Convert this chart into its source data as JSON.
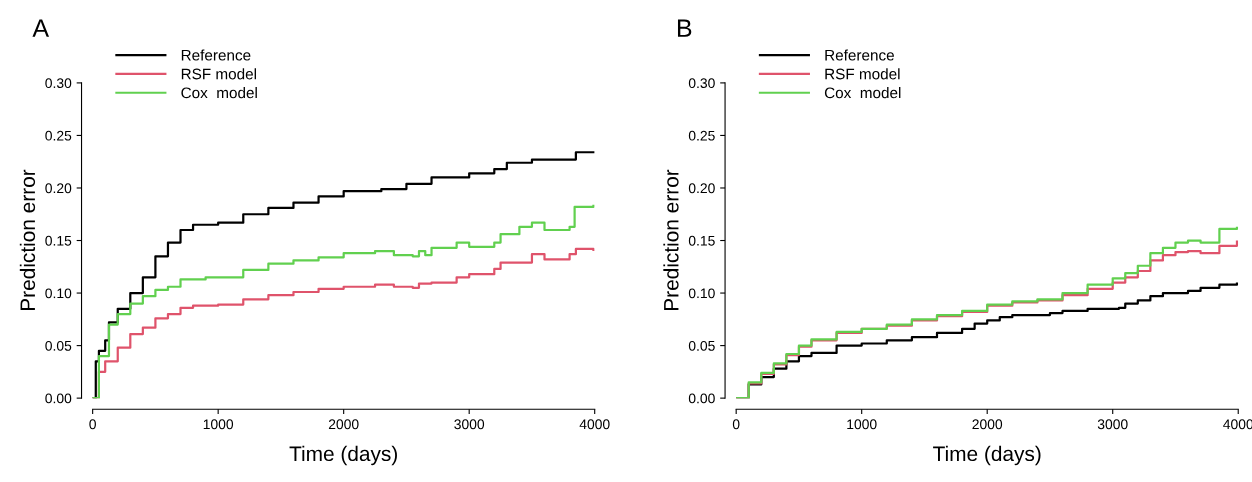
{
  "chart_data": [
    {
      "type": "step",
      "title": "A",
      "xlabel": "Time (days)",
      "ylabel": "Prediction error",
      "xlim": [
        0,
        4000
      ],
      "ylim": [
        0,
        0.3
      ],
      "xticks": [
        0,
        1000,
        2000,
        3000,
        4000
      ],
      "yticks": [
        {
          "value": 0,
          "label": "0.00"
        },
        {
          "value": 0.05,
          "label": "0.05"
        },
        {
          "value": 0.1,
          "label": "0.10"
        },
        {
          "value": 0.15,
          "label": "0.15"
        },
        {
          "value": 0.2,
          "label": "0.20"
        },
        {
          "value": 0.25,
          "label": "0.25"
        },
        {
          "value": 0.3,
          "label": "0.30"
        }
      ],
      "legend": "top left",
      "grid": false,
      "series": [
        {
          "name": "Reference",
          "color": "#000000",
          "x": [
            0,
            25,
            50,
            100,
            130,
            200,
            300,
            400,
            500,
            600,
            700,
            800,
            1000,
            1200,
            1400,
            1600,
            1800,
            2000,
            2300,
            2500,
            2700,
            3000,
            3200,
            3300,
            3500,
            3850,
            3990
          ],
          "values": [
            0,
            0.035,
            0.045,
            0.055,
            0.072,
            0.085,
            0.1,
            0.115,
            0.135,
            0.148,
            0.16,
            0.165,
            0.167,
            0.175,
            0.181,
            0.186,
            0.192,
            0.197,
            0.199,
            0.204,
            0.21,
            0.214,
            0.218,
            0.224,
            0.227,
            0.234,
            0.234
          ]
        },
        {
          "name": "RSF model",
          "color": "#df536b",
          "x": [
            0,
            50,
            100,
            200,
            300,
            400,
            500,
            600,
            700,
            800,
            1000,
            1200,
            1400,
            1600,
            1800,
            2000,
            2250,
            2400,
            2550,
            2600,
            2700,
            2900,
            3000,
            3200,
            3250,
            3500,
            3600,
            3800,
            3850,
            3990
          ],
          "values": [
            0,
            0.025,
            0.035,
            0.048,
            0.061,
            0.067,
            0.076,
            0.08,
            0.086,
            0.088,
            0.089,
            0.094,
            0.098,
            0.101,
            0.104,
            0.106,
            0.108,
            0.106,
            0.105,
            0.109,
            0.11,
            0.115,
            0.118,
            0.123,
            0.129,
            0.137,
            0.132,
            0.137,
            0.142,
            0.141
          ]
        },
        {
          "name": "Cox  model",
          "color": "#61d04f",
          "x": [
            0,
            50,
            130,
            200,
            300,
            400,
            500,
            600,
            700,
            900,
            1050,
            1200,
            1400,
            1600,
            1800,
            2000,
            2250,
            2400,
            2550,
            2600,
            2650,
            2700,
            2900,
            3000,
            3200,
            3250,
            3400,
            3500,
            3600,
            3800,
            3840,
            3990
          ],
          "values": [
            0,
            0.04,
            0.07,
            0.08,
            0.09,
            0.097,
            0.103,
            0.106,
            0.113,
            0.115,
            0.115,
            0.122,
            0.128,
            0.131,
            0.134,
            0.138,
            0.14,
            0.136,
            0.135,
            0.14,
            0.136,
            0.143,
            0.148,
            0.144,
            0.148,
            0.156,
            0.163,
            0.167,
            0.16,
            0.163,
            0.182,
            0.183
          ]
        }
      ]
    },
    {
      "type": "step",
      "title": "B",
      "xlabel": "Time (days)",
      "ylabel": "Prediction error",
      "xlim": [
        0,
        4000
      ],
      "ylim": [
        0,
        0.3
      ],
      "xticks": [
        0,
        1000,
        2000,
        3000,
        4000
      ],
      "yticks": [
        {
          "value": 0,
          "label": "0.00"
        },
        {
          "value": 0.05,
          "label": "0.05"
        },
        {
          "value": 0.1,
          "label": "0.10"
        },
        {
          "value": 0.15,
          "label": "0.15"
        },
        {
          "value": 0.2,
          "label": "0.20"
        },
        {
          "value": 0.25,
          "label": "0.25"
        },
        {
          "value": 0.3,
          "label": "0.30"
        }
      ],
      "legend": "top left",
      "grid": false,
      "series": [
        {
          "name": "Reference",
          "color": "#000000",
          "x": [
            0,
            100,
            200,
            300,
            400,
            500,
            600,
            800,
            1000,
            1200,
            1400,
            1600,
            1800,
            1900,
            2000,
            2100,
            2200,
            2500,
            2600,
            2800,
            3050,
            3100,
            3200,
            3300,
            3400,
            3600,
            3700,
            3850,
            3990
          ],
          "values": [
            0,
            0.013,
            0.02,
            0.028,
            0.035,
            0.04,
            0.043,
            0.05,
            0.052,
            0.055,
            0.058,
            0.062,
            0.066,
            0.071,
            0.074,
            0.077,
            0.079,
            0.081,
            0.083,
            0.085,
            0.086,
            0.09,
            0.093,
            0.097,
            0.1,
            0.102,
            0.105,
            0.108,
            0.109
          ]
        },
        {
          "name": "RSF model",
          "color": "#df536b",
          "x": [
            0,
            100,
            200,
            300,
            400,
            500,
            600,
            800,
            1000,
            1200,
            1400,
            1600,
            1800,
            2000,
            2200,
            2400,
            2600,
            2800,
            3000,
            3100,
            3200,
            3300,
            3400,
            3500,
            3600,
            3700,
            3850,
            3990
          ],
          "values": [
            0,
            0.014,
            0.023,
            0.032,
            0.041,
            0.049,
            0.055,
            0.062,
            0.066,
            0.069,
            0.074,
            0.078,
            0.082,
            0.088,
            0.091,
            0.093,
            0.098,
            0.104,
            0.11,
            0.115,
            0.121,
            0.131,
            0.136,
            0.139,
            0.14,
            0.138,
            0.145,
            0.149
          ]
        },
        {
          "name": "Cox  model",
          "color": "#61d04f",
          "x": [
            0,
            100,
            200,
            300,
            400,
            500,
            600,
            800,
            1000,
            1200,
            1400,
            1600,
            1800,
            2000,
            2200,
            2400,
            2600,
            2800,
            3000,
            3100,
            3200,
            3300,
            3400,
            3500,
            3600,
            3700,
            3850,
            3990
          ],
          "values": [
            0,
            0.015,
            0.024,
            0.033,
            0.042,
            0.05,
            0.056,
            0.063,
            0.066,
            0.07,
            0.075,
            0.079,
            0.083,
            0.089,
            0.092,
            0.094,
            0.1,
            0.108,
            0.114,
            0.119,
            0.126,
            0.138,
            0.143,
            0.148,
            0.15,
            0.148,
            0.161,
            0.162
          ]
        }
      ]
    }
  ]
}
